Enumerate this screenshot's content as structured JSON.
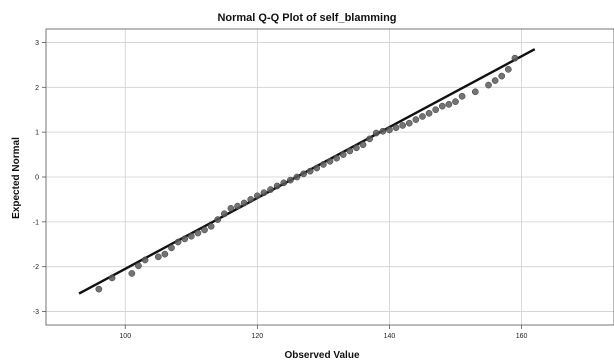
{
  "chart_data": {
    "type": "scatter",
    "title": "Normal Q-Q Plot of self_blamming",
    "xlabel": "Observed Value",
    "ylabel": "Expected Normal",
    "xlim": [
      88,
      174
    ],
    "ylim": [
      -3.3,
      3.3
    ],
    "xticks": [
      100,
      120,
      140,
      160
    ],
    "yticks": [
      -3,
      -2,
      -1,
      0,
      1,
      2,
      3
    ],
    "grid": true,
    "colors": {
      "points": "#5a5a5a",
      "line": "#111111",
      "grid": "#cfcfcf",
      "axis": "#555555"
    },
    "reference_line": {
      "x": [
        93,
        162
      ],
      "y": [
        -2.6,
        2.85
      ]
    },
    "points": {
      "x": [
        96,
        98,
        101,
        102,
        103,
        105,
        106,
        107,
        108,
        109,
        110,
        111,
        112,
        113,
        114,
        115,
        116,
        117,
        118,
        119,
        120,
        121,
        122,
        123,
        124,
        125,
        126,
        127,
        128,
        129,
        130,
        131,
        132,
        133,
        134,
        135,
        136,
        137,
        138,
        139,
        140,
        141,
        142,
        143,
        144,
        145,
        146,
        147,
        148,
        149,
        150,
        151,
        153,
        155,
        156,
        157,
        158,
        159
      ],
      "y": [
        -2.5,
        -2.25,
        -2.15,
        -1.98,
        -1.85,
        -1.78,
        -1.72,
        -1.58,
        -1.45,
        -1.38,
        -1.32,
        -1.25,
        -1.18,
        -1.1,
        -0.95,
        -0.82,
        -0.7,
        -0.65,
        -0.58,
        -0.5,
        -0.42,
        -0.35,
        -0.28,
        -0.2,
        -0.13,
        -0.07,
        0.0,
        0.07,
        0.13,
        0.2,
        0.28,
        0.35,
        0.42,
        0.5,
        0.58,
        0.65,
        0.72,
        0.85,
        0.98,
        1.02,
        1.05,
        1.1,
        1.15,
        1.2,
        1.28,
        1.35,
        1.42,
        1.5,
        1.58,
        1.62,
        1.68,
        1.8,
        1.9,
        2.05,
        2.15,
        2.25,
        2.4,
        2.65
      ]
    }
  }
}
